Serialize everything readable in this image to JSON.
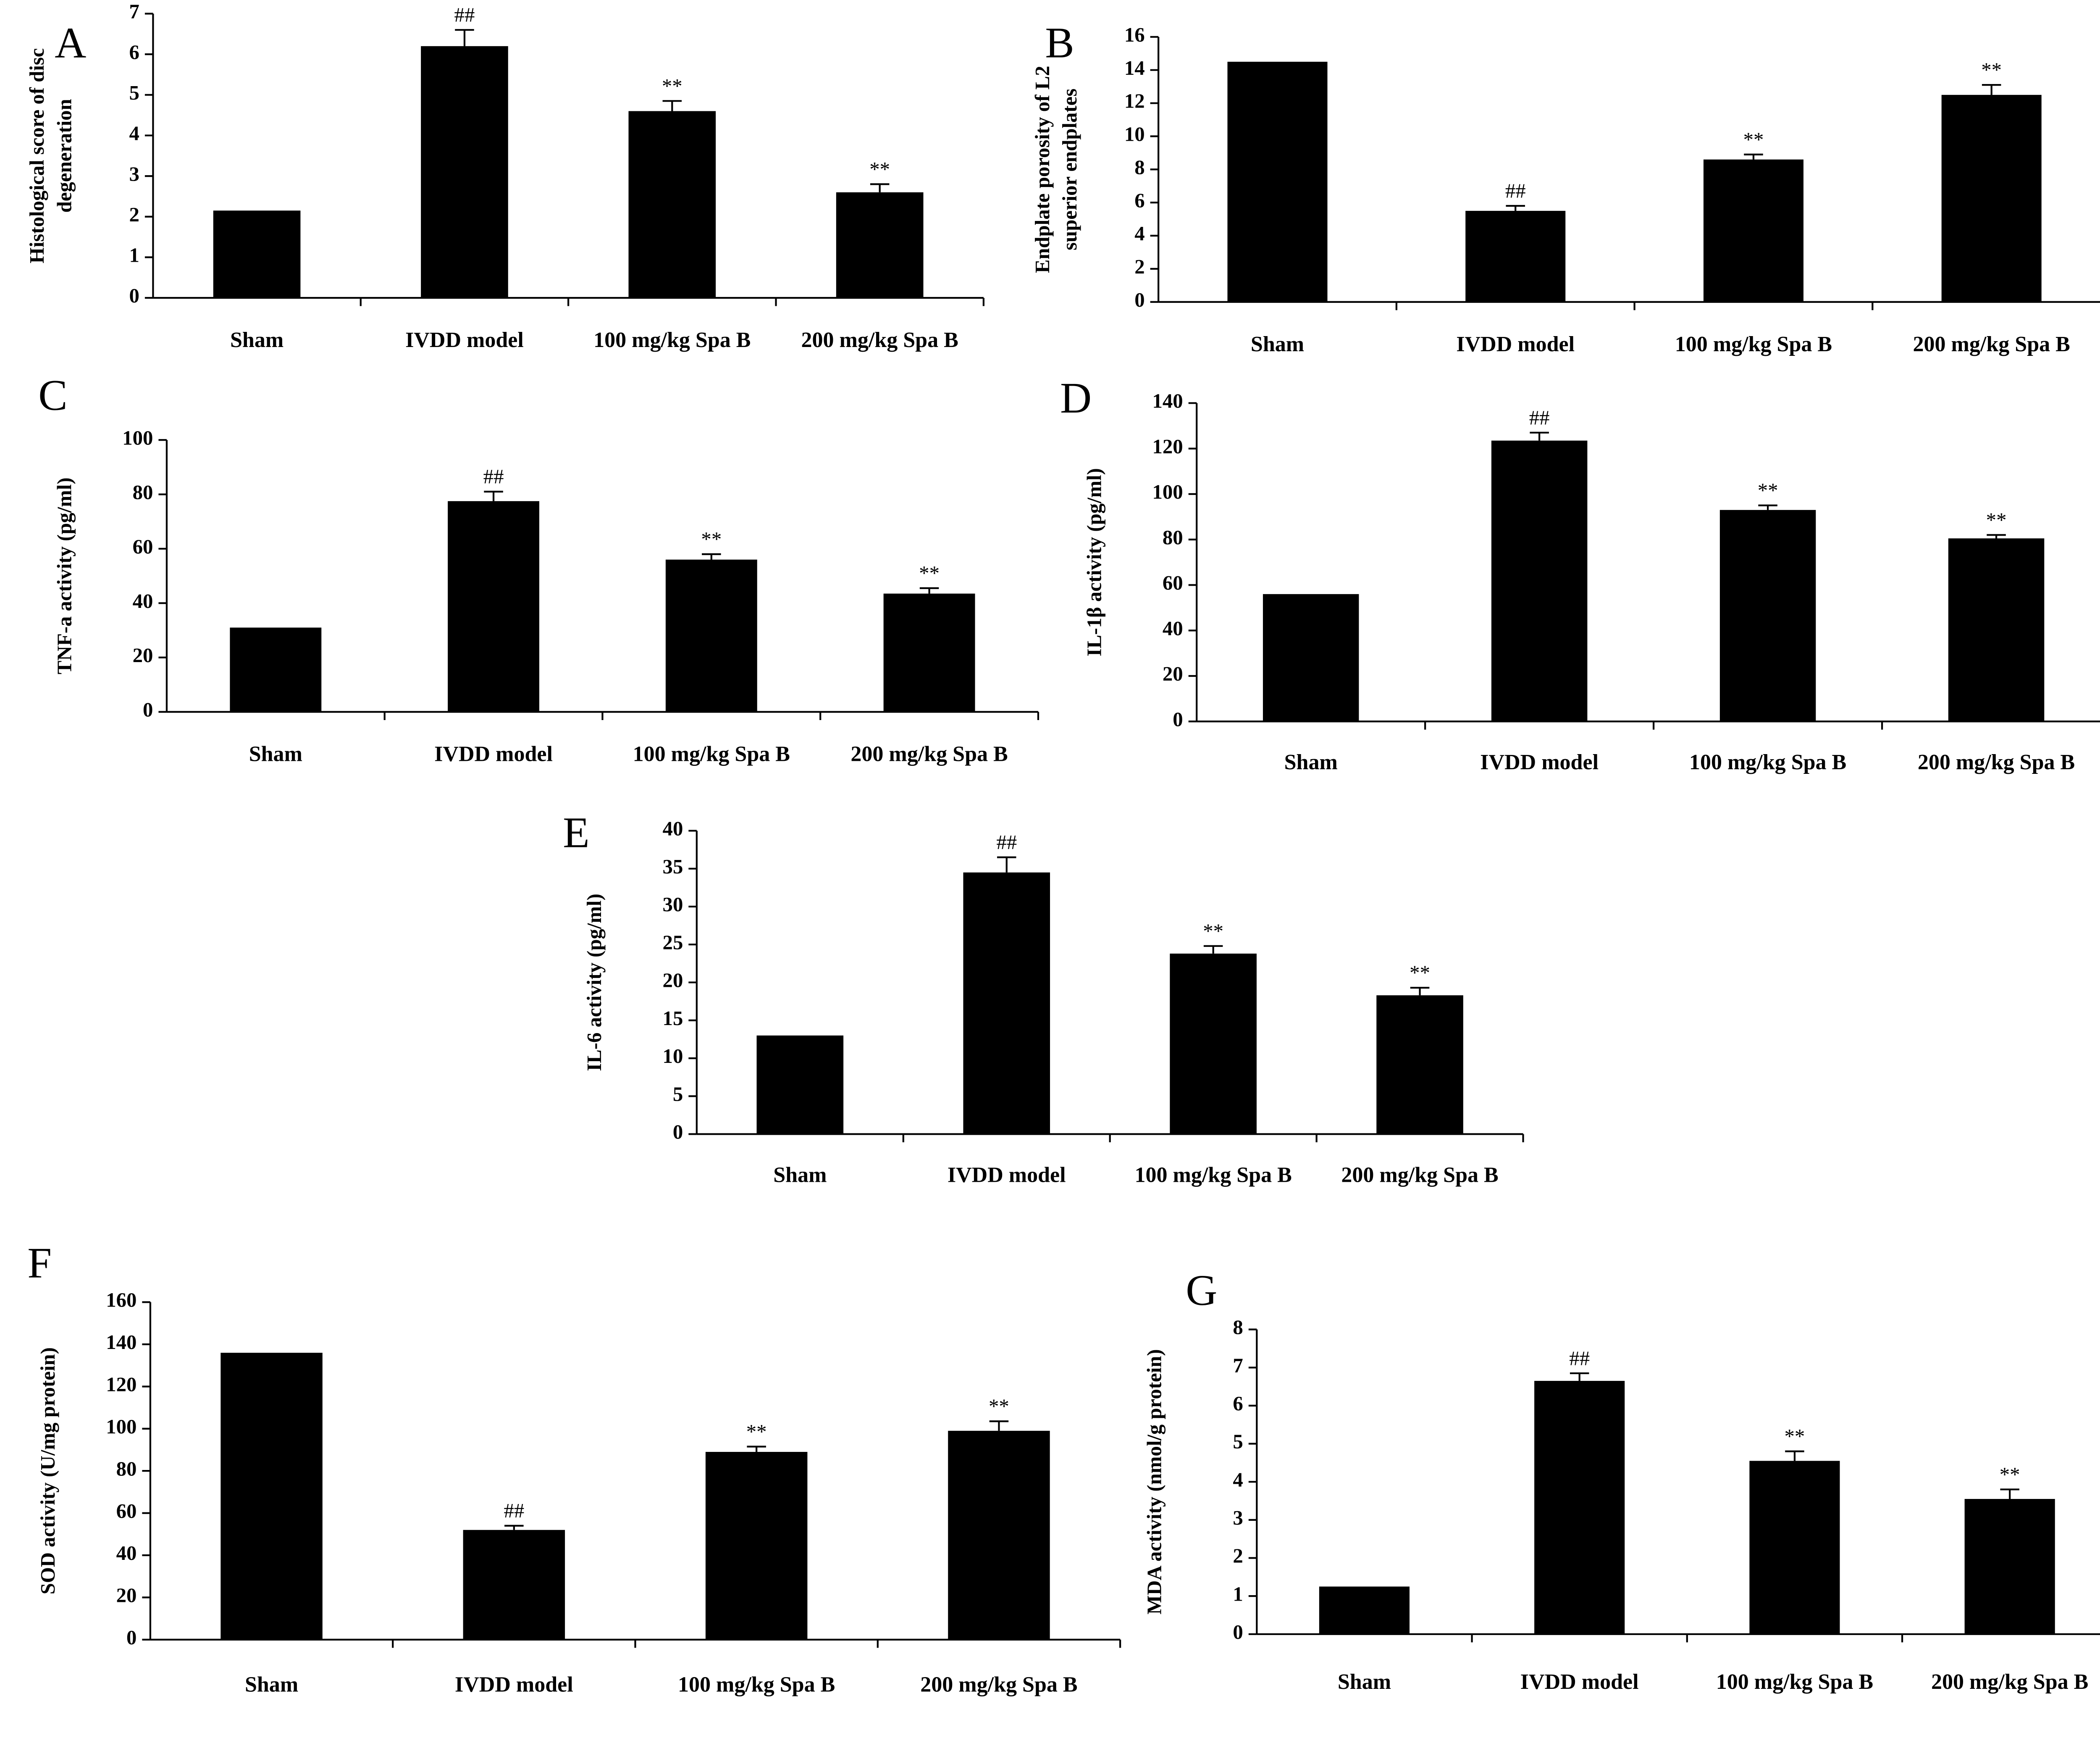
{
  "chart_data": [
    {
      "type": "bar",
      "panel": "A",
      "ylabel": [
        "Histological score of disc",
        "degeneration"
      ],
      "categories": [
        "Sham",
        "IVDD model",
        "100 mg/kg Spa B",
        "200 mg/kg Spa B"
      ],
      "values": [
        2.15,
        6.2,
        4.6,
        2.6
      ],
      "errors": [
        null,
        0.4,
        0.25,
        0.2
      ],
      "annotations": [
        null,
        "##",
        "**",
        "**"
      ],
      "color": "#000000",
      "ylim": [
        0,
        7
      ],
      "yticks": [
        0,
        1,
        2,
        3,
        4,
        5,
        6,
        7
      ]
    },
    {
      "type": "bar",
      "panel": "B",
      "ylabel": [
        "Endplate porosity of L2",
        "superior  endplates"
      ],
      "categories": [
        "Sham",
        "IVDD model",
        "100 mg/kg Spa B",
        "200 mg/kg Spa B"
      ],
      "values": [
        14.5,
        5.5,
        8.6,
        12.5
      ],
      "errors": [
        null,
        0.3,
        0.3,
        0.6
      ],
      "annotations": [
        null,
        "##",
        "**",
        "**"
      ],
      "color": "#000000",
      "ylim": [
        0,
        16
      ],
      "yticks": [
        0,
        2,
        4,
        6,
        8,
        10,
        12,
        14,
        16
      ]
    },
    {
      "type": "bar",
      "panel": "C",
      "ylabel": [
        "TNF-a activity (pg/ml)"
      ],
      "categories": [
        "Sham",
        "IVDD model",
        "100 mg/kg Spa B",
        "200 mg/kg Spa B"
      ],
      "values": [
        31,
        77.5,
        56,
        43.5
      ],
      "errors": [
        null,
        3.5,
        2,
        2
      ],
      "annotations": [
        null,
        "##",
        "**",
        "**"
      ],
      "color": "#000000",
      "ylim": [
        0,
        100
      ],
      "yticks": [
        0,
        20,
        40,
        60,
        80,
        100
      ]
    },
    {
      "type": "bar",
      "panel": "D",
      "ylabel": [
        "IL-1β activity (pg/ml)"
      ],
      "categories": [
        "Sham",
        "IVDD model",
        "100 mg/kg Spa B",
        "200 mg/kg Spa B"
      ],
      "values": [
        56,
        123.5,
        93,
        80.5
      ],
      "errors": [
        null,
        3.5,
        2,
        1.5
      ],
      "annotations": [
        null,
        "##",
        "**",
        "**"
      ],
      "color": "#000000",
      "ylim": [
        0,
        140
      ],
      "yticks": [
        0,
        20,
        40,
        60,
        80,
        100,
        120,
        140
      ]
    },
    {
      "type": "bar",
      "panel": "E",
      "ylabel": [
        "IL-6 activity (pg/ml)"
      ],
      "categories": [
        "Sham",
        "IVDD model",
        "100 mg/kg Spa B",
        "200 mg/kg Spa B"
      ],
      "values": [
        13,
        34.5,
        23.8,
        18.3
      ],
      "errors": [
        null,
        2,
        1,
        1
      ],
      "annotations": [
        null,
        "##",
        "**",
        "**"
      ],
      "color": "#000000",
      "ylim": [
        0,
        40
      ],
      "yticks": [
        0,
        5,
        10,
        15,
        20,
        25,
        30,
        35,
        40
      ]
    },
    {
      "type": "bar",
      "panel": "F",
      "ylabel": [
        "SOD activity (U/mg protein)"
      ],
      "categories": [
        "Sham",
        "IVDD model",
        "100 mg/kg Spa B",
        "200 mg/kg Spa B"
      ],
      "values": [
        136,
        52,
        89,
        99
      ],
      "errors": [
        null,
        2,
        2.5,
        4.5
      ],
      "annotations": [
        null,
        "##",
        "**",
        "**"
      ],
      "color": "#000000",
      "ylim": [
        0,
        160
      ],
      "yticks": [
        0,
        20,
        40,
        60,
        80,
        100,
        120,
        140,
        160
      ]
    },
    {
      "type": "bar",
      "panel": "G",
      "ylabel": [
        "MDA activity (nmol/g  protein)"
      ],
      "categories": [
        "Sham",
        "IVDD model",
        "100 mg/kg Spa B",
        "200 mg/kg Spa B"
      ],
      "values": [
        1.25,
        6.65,
        4.55,
        3.55
      ],
      "errors": [
        null,
        0.2,
        0.25,
        0.25
      ],
      "annotations": [
        null,
        "##",
        "**",
        "**"
      ],
      "color": "#000000",
      "ylim": [
        0,
        8
      ],
      "yticks": [
        0,
        1,
        2,
        3,
        4,
        5,
        6,
        7,
        8
      ]
    }
  ]
}
